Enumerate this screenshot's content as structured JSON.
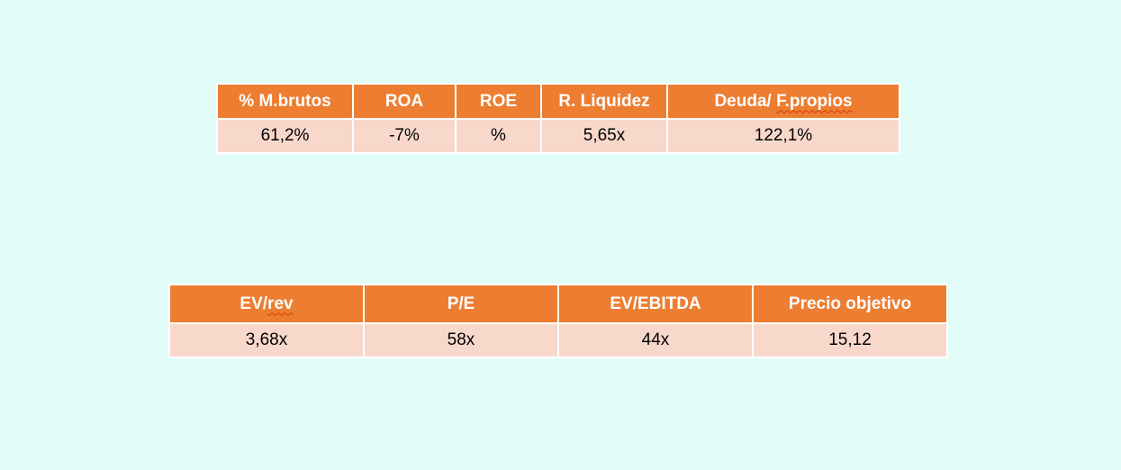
{
  "ratios_table": {
    "headers": [
      "% M.brutos",
      "ROA",
      "ROE",
      "R. Liquidez",
      "Deuda/ ",
      "F.propios"
    ],
    "values": [
      "61,2%",
      "-7%",
      "%",
      "5,65x",
      "122,1%"
    ]
  },
  "valuation_table": {
    "headers": [
      "EV/",
      "rev",
      "P/E",
      "EV/EBITDA",
      "Precio objetivo"
    ],
    "values": [
      "3,68x",
      "58x",
      "44x",
      "15,12"
    ]
  },
  "colors": {
    "background": "#e2fdf8",
    "header_fill": "#ed7d31",
    "cell_fill": "#f9d8cc",
    "spellcheck_underline": "#d83b01"
  }
}
